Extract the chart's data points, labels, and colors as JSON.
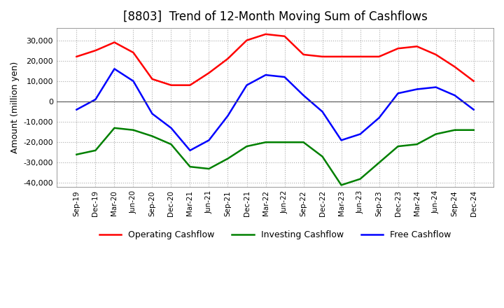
{
  "title": "[8803]  Trend of 12-Month Moving Sum of Cashflows",
  "ylabel": "Amount (million yen)",
  "ylim": [
    -42000,
    36000
  ],
  "yticks": [
    -40000,
    -30000,
    -20000,
    -10000,
    0,
    10000,
    20000,
    30000
  ],
  "x_labels": [
    "Sep-19",
    "Dec-19",
    "Mar-20",
    "Jun-20",
    "Sep-20",
    "Dec-20",
    "Mar-21",
    "Jun-21",
    "Sep-21",
    "Dec-21",
    "Mar-22",
    "Jun-22",
    "Sep-22",
    "Dec-22",
    "Mar-23",
    "Jun-23",
    "Sep-23",
    "Dec-23",
    "Mar-24",
    "Jun-24",
    "Sep-24",
    "Dec-24"
  ],
  "operating": [
    22000,
    25000,
    29000,
    24000,
    11000,
    8000,
    8000,
    14000,
    21000,
    30000,
    33000,
    32000,
    23000,
    22000,
    22000,
    22000,
    22000,
    26000,
    27000,
    23000,
    17000,
    10000
  ],
  "investing": [
    -26000,
    -24000,
    -13000,
    -14000,
    -17000,
    -21000,
    -32000,
    -33000,
    -28000,
    -22000,
    -20000,
    -20000,
    -20000,
    -27000,
    -41000,
    -38000,
    -30000,
    -22000,
    -21000,
    -16000,
    -14000,
    -14000
  ],
  "free": [
    -4000,
    1000,
    16000,
    10000,
    -6000,
    -13000,
    -24000,
    -19000,
    -7000,
    8000,
    13000,
    12000,
    3000,
    -5000,
    -19000,
    -16000,
    -8000,
    4000,
    6000,
    7000,
    3000,
    -4000
  ],
  "op_color": "#ff0000",
  "inv_color": "#008000",
  "free_color": "#0000ff",
  "bg_color": "#ffffff",
  "grid_color": "#aaaaaa",
  "title_fontsize": 12,
  "legend_labels": [
    "Operating Cashflow",
    "Investing Cashflow",
    "Free Cashflow"
  ]
}
